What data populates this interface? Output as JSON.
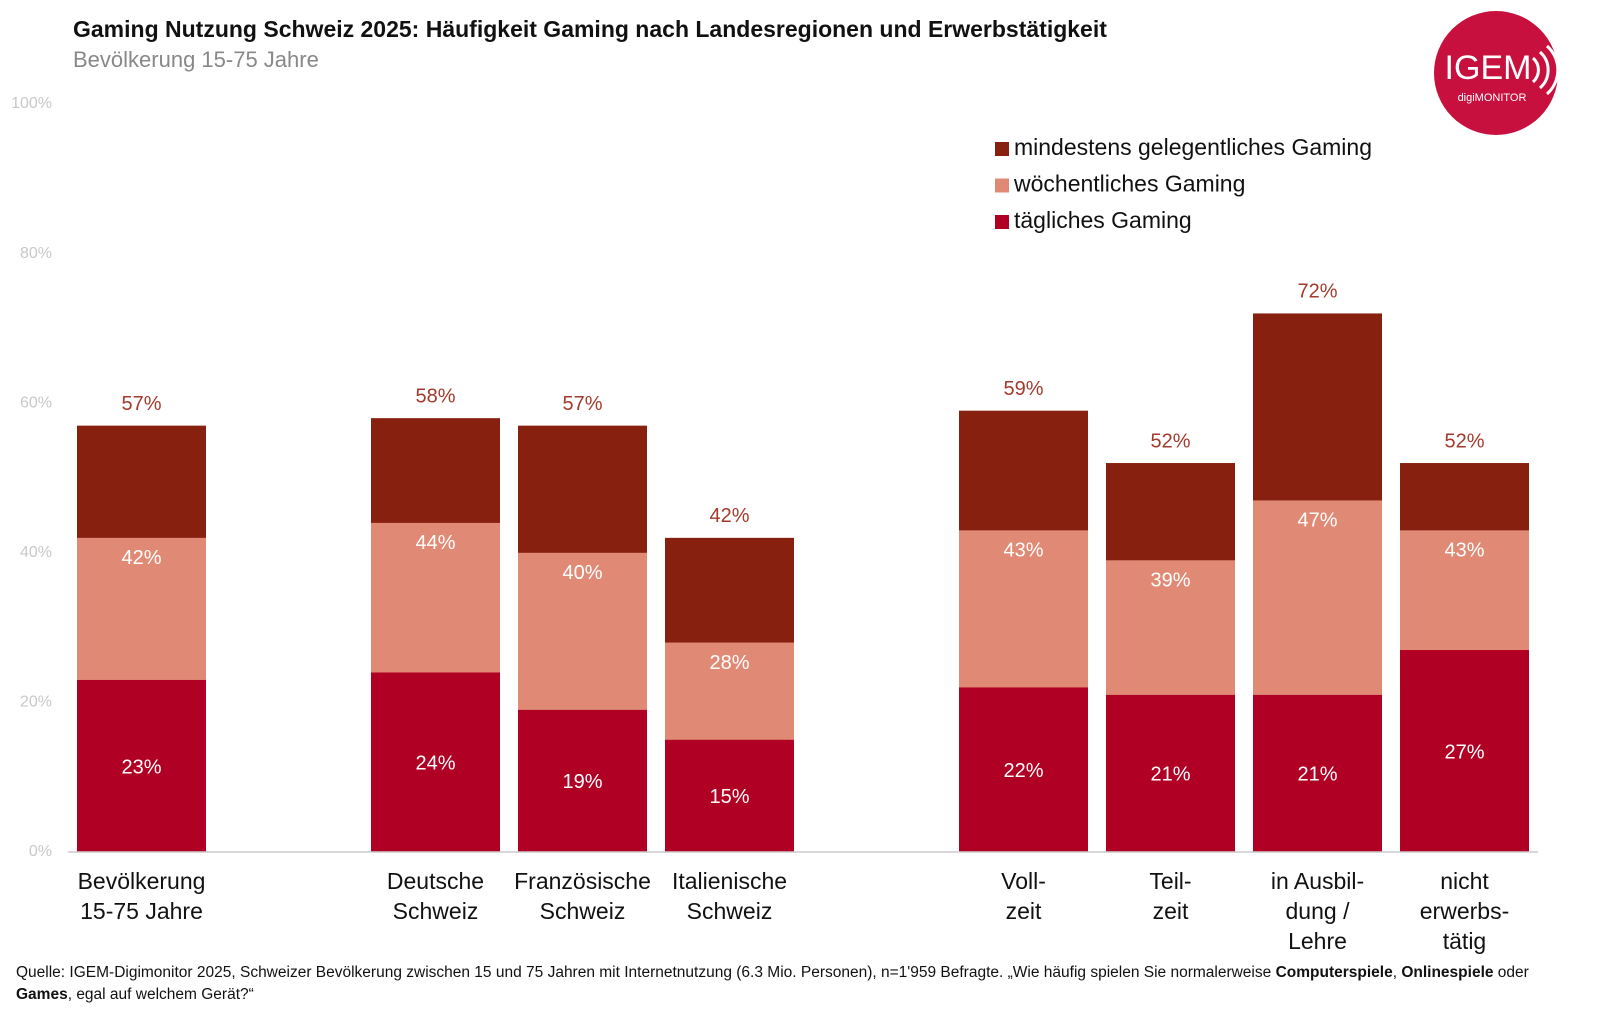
{
  "chart_data": {
    "type": "overlapping-bar",
    "title": "Gaming Nutzung Schweiz 2025: Häufigkeit Gaming nach Landesregionen und Erwerbstätigkeit",
    "subtitle": "Bevölkerung 15-75 Jahre",
    "categories": [
      "Bevölkerung\n15-75 Jahre",
      null,
      "Deutsche\nSchweiz",
      "Französische\nSchweiz",
      "Italienische\nSchweiz",
      null,
      "Voll-\nzeit",
      "Teil-\nzeit",
      "in Ausbil-\ndung /\nLehre",
      "nicht\nerwerbs-\ntätig"
    ],
    "series": [
      {
        "name": "mindestens gelegentliches Gaming",
        "color": "#87200e",
        "values": [
          57,
          null,
          58,
          57,
          42,
          null,
          59,
          52,
          72,
          52
        ],
        "value_labels": [
          "57%",
          null,
          "58%",
          "57%",
          "42%",
          null,
          "59%",
          "52%",
          "72%",
          "52%"
        ]
      },
      {
        "name": "wöchentliches Gaming",
        "color": "#e08a76",
        "values": [
          42,
          null,
          44,
          40,
          28,
          null,
          43,
          39,
          47,
          43
        ],
        "value_labels": [
          "42%",
          null,
          "44%",
          "40%",
          "28%",
          null,
          "43%",
          "39%",
          "47%",
          "43%"
        ]
      },
      {
        "name": "tägliches Gaming",
        "color": "#b00023",
        "values": [
          23,
          null,
          24,
          19,
          15,
          null,
          22,
          21,
          21,
          27
        ],
        "value_labels": [
          "23%",
          null,
          "24%",
          "19%",
          "15%",
          null,
          "22%",
          "21%",
          "21%",
          "27%"
        ]
      }
    ],
    "ylim": [
      0,
      100
    ],
    "yticks": [
      {
        "value": 0,
        "label": "0%"
      },
      {
        "value": 20,
        "label": "20%"
      },
      {
        "value": 40,
        "label": "40%"
      },
      {
        "value": 60,
        "label": "60%"
      },
      {
        "value": 80,
        "label": "80%"
      },
      {
        "value": 100,
        "label": "100%"
      }
    ],
    "grid": false,
    "legend": "top-right"
  },
  "logo": {
    "text": "IGEM",
    "subtext": "digiMONITOR"
  },
  "source": [
    {
      "text": "Quelle: IGEM-Digimonitor 2025, Schweizer Bevölkerung zwischen 15 und 75 Jahren mit Internetnutzung (6.3 Mio. Personen), n=1'959 Befragte. „Wie häufig spielen Sie normalerweise ",
      "bold": false
    },
    {
      "text": "Computerspiele",
      "bold": true
    },
    {
      "text": ", ",
      "bold": false
    },
    {
      "text": "Onlinespiele",
      "bold": true
    },
    {
      "text": " oder ",
      "bold": false
    },
    {
      "text": "Games",
      "bold": true
    },
    {
      "text": ", egal auf welchem Gerät?“",
      "bold": false
    }
  ]
}
